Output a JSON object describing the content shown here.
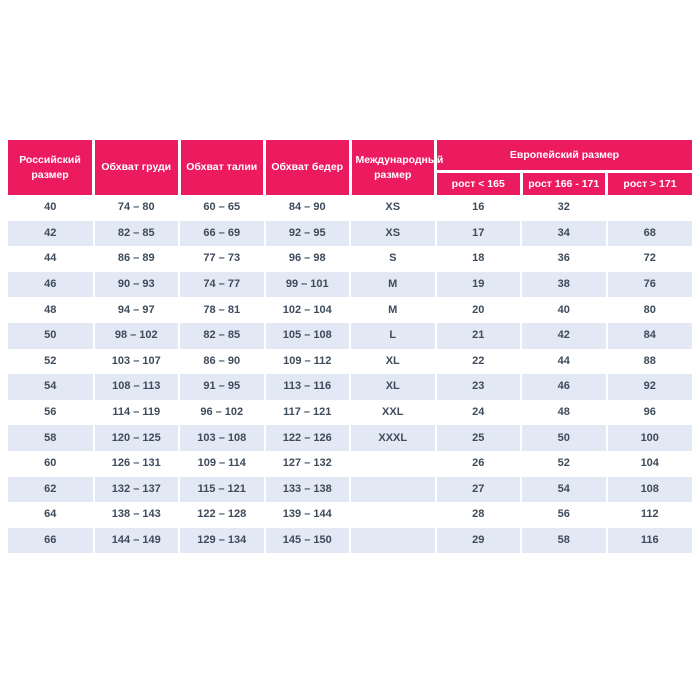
{
  "chart_data": {
    "type": "table",
    "header": {
      "russian_size": "Российский размер",
      "chest": "Обхват груди",
      "waist": "Обхват талии",
      "hips": "Обхват бедер",
      "international_size": "Международный размер",
      "european_group": "Европейский размер",
      "european_sub": [
        "рост < 165",
        "рост 166 - 171",
        "рост > 171"
      ]
    },
    "rows": [
      [
        "40",
        "74 – 80",
        "60 – 65",
        "84 – 90",
        "XS",
        "16",
        "32",
        ""
      ],
      [
        "42",
        "82 – 85",
        "66 – 69",
        "92 – 95",
        "XS",
        "17",
        "34",
        "68"
      ],
      [
        "44",
        "86 – 89",
        "77 – 73",
        "96 – 98",
        "S",
        "18",
        "36",
        "72"
      ],
      [
        "46",
        "90 – 93",
        "74 – 77",
        "99 – 101",
        "M",
        "19",
        "38",
        "76"
      ],
      [
        "48",
        "94 – 97",
        "78 – 81",
        "102 – 104",
        "M",
        "20",
        "40",
        "80"
      ],
      [
        "50",
        "98 – 102",
        "82 – 85",
        "105 – 108",
        "L",
        "21",
        "42",
        "84"
      ],
      [
        "52",
        "103 – 107",
        "86 – 90",
        "109 – 112",
        "XL",
        "22",
        "44",
        "88"
      ],
      [
        "54",
        "108 – 113",
        "91 – 95",
        "113 – 116",
        "XL",
        "23",
        "46",
        "92"
      ],
      [
        "56",
        "114 – 119",
        "96 – 102",
        "117 – 121",
        "XXL",
        "24",
        "48",
        "96"
      ],
      [
        "58",
        "120 – 125",
        "103 – 108",
        "122 – 126",
        "XXXL",
        "25",
        "50",
        "100"
      ],
      [
        "60",
        "126 – 131",
        "109 – 114",
        "127 – 132",
        "",
        "26",
        "52",
        "104"
      ],
      [
        "62",
        "132 – 137",
        "115 – 121",
        "133 – 138",
        "",
        "27",
        "54",
        "108"
      ],
      [
        "64",
        "138 – 143",
        "122 – 128",
        "139 – 144",
        "",
        "28",
        "56",
        "112"
      ],
      [
        "66",
        "144 – 149",
        "129 – 134",
        "145 – 150",
        "",
        "29",
        "58",
        "116"
      ]
    ],
    "colors": {
      "header_bg": "#EC1A5F",
      "header_text": "#FFFFFF",
      "row_bg": "#FFFFFF",
      "row_alt_bg": "#E2E9F4",
      "cell_text": "#3E4B5C"
    },
    "layout": {
      "legend_position": "none",
      "grid": "off",
      "columns_total": 8,
      "body_rows_total": 14
    }
  }
}
